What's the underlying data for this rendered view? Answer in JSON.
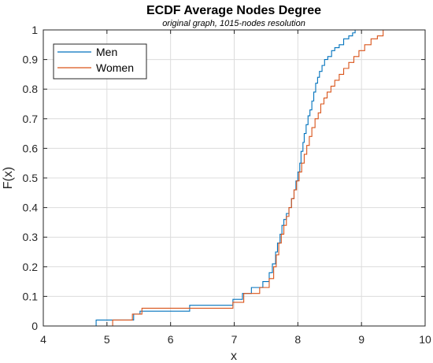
{
  "chart_data": {
    "type": "line",
    "title": "ECDF Average Nodes Degree",
    "subtitle": "original graph, 1015-nodes resolution",
    "xlabel": "x",
    "ylabel": "F(x)",
    "xlim": [
      4,
      10
    ],
    "ylim": [
      0,
      1
    ],
    "xticks": [
      "4",
      "5",
      "6",
      "7",
      "8",
      "9",
      "10"
    ],
    "yticks": [
      "0",
      "0.1",
      "0.2",
      "0.3",
      "0.4",
      "0.5",
      "0.6",
      "0.7",
      "0.8",
      "0.9",
      "1"
    ],
    "grid": true,
    "legend_position": "top-left",
    "series": [
      {
        "name": "Men",
        "color": "#0072BD",
        "x": [
          4.83,
          5.42,
          5.52,
          6.3,
          6.98,
          7.13,
          7.27,
          7.45,
          7.55,
          7.6,
          7.65,
          7.68,
          7.72,
          7.75,
          7.78,
          7.82,
          7.86,
          7.9,
          7.94,
          7.97,
          8.0,
          8.03,
          8.05,
          8.08,
          8.1,
          8.13,
          8.16,
          8.19,
          8.22,
          8.25,
          8.28,
          8.31,
          8.34,
          8.38,
          8.42,
          8.47,
          8.53,
          8.58,
          8.65,
          8.72,
          8.8,
          8.86,
          8.9
        ],
        "y": [
          0.02,
          0.04,
          0.05,
          0.07,
          0.09,
          0.11,
          0.13,
          0.15,
          0.18,
          0.21,
          0.25,
          0.28,
          0.31,
          0.34,
          0.36,
          0.38,
          0.4,
          0.43,
          0.46,
          0.49,
          0.52,
          0.55,
          0.59,
          0.62,
          0.65,
          0.68,
          0.71,
          0.73,
          0.76,
          0.79,
          0.82,
          0.84,
          0.86,
          0.88,
          0.9,
          0.91,
          0.93,
          0.94,
          0.95,
          0.97,
          0.98,
          0.99,
          1.0
        ]
      },
      {
        "name": "Women",
        "color": "#D95319",
        "x": [
          5.09,
          5.4,
          5.55,
          6.98,
          7.15,
          7.4,
          7.55,
          7.62,
          7.66,
          7.7,
          7.74,
          7.78,
          7.82,
          7.86,
          7.9,
          7.94,
          7.98,
          8.02,
          8.06,
          8.1,
          8.14,
          8.18,
          8.22,
          8.27,
          8.32,
          8.36,
          8.41,
          8.46,
          8.52,
          8.58,
          8.65,
          8.72,
          8.8,
          8.88,
          8.96,
          9.05,
          9.15,
          9.25,
          9.34
        ],
        "y": [
          0.02,
          0.04,
          0.06,
          0.08,
          0.11,
          0.13,
          0.16,
          0.2,
          0.24,
          0.28,
          0.31,
          0.34,
          0.37,
          0.4,
          0.43,
          0.46,
          0.49,
          0.52,
          0.55,
          0.58,
          0.61,
          0.64,
          0.67,
          0.7,
          0.72,
          0.75,
          0.77,
          0.79,
          0.81,
          0.83,
          0.85,
          0.87,
          0.89,
          0.91,
          0.93,
          0.95,
          0.97,
          0.98,
          1.0
        ]
      }
    ]
  }
}
